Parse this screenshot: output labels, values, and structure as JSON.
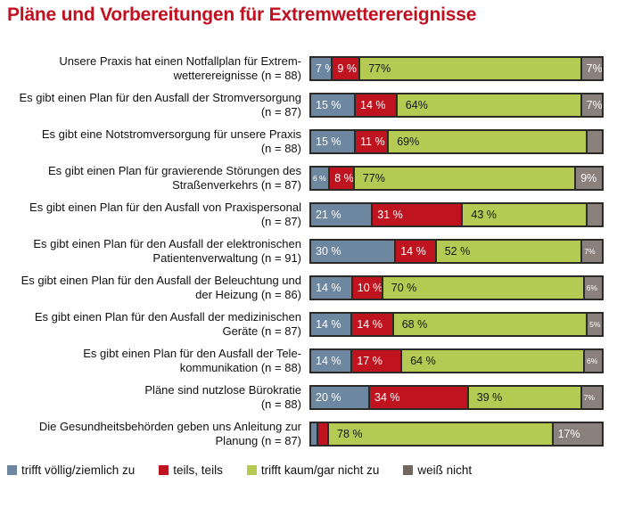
{
  "title": "Pläne und Vorbereitungen für Extremwetterereignisse",
  "colors": {
    "title": "#c11020",
    "border": "#2b2a27",
    "agree": "#6d87a0",
    "mixed": "#bf141f",
    "disagree": "#b5ca52",
    "dont_know": "#8a817d",
    "dont_know_legend": "#6f6760"
  },
  "legend": [
    {
      "key": "agree",
      "label": "trifft völlig/ziemlich zu",
      "color": "#6d87a0"
    },
    {
      "key": "mixed",
      "label": "teils, teils",
      "color": "#bf141f"
    },
    {
      "key": "disagree",
      "label": "trifft kaum/gar nicht zu",
      "color": "#b5ca52"
    },
    {
      "key": "dontknow",
      "label": "weiß nicht",
      "color": "#6f6760"
    }
  ],
  "chart_data": {
    "type": "bar",
    "orientation": "horizontal",
    "stacked": true,
    "x_range_percent": [
      0,
      100
    ],
    "grid": false,
    "legend_position": "bottom",
    "series_names": [
      "trifft völlig/ziemlich zu",
      "teils, teils",
      "trifft kaum/gar nicht zu",
      "weiß nicht"
    ],
    "rows": [
      {
        "label_lines": [
          "Unsere Praxis hat einen Notfallplan für Extrem-",
          "wetterereignisse (n = 88)"
        ],
        "segments": [
          {
            "key": "agree",
            "value": 7,
            "label": "7 %",
            "small": false
          },
          {
            "key": "mixed",
            "value": 9,
            "label": "9 %",
            "small": false
          },
          {
            "key": "disagree",
            "value": 77,
            "label": "77%",
            "small": false
          },
          {
            "key": "dontknow",
            "value": 7,
            "label": "7%",
            "small": false
          }
        ]
      },
      {
        "label_lines": [
          "Es gibt einen Plan für den Ausfall der Stromversorgung",
          "(n = 87)"
        ],
        "segments": [
          {
            "key": "agree",
            "value": 15,
            "label": "15 %",
            "small": false
          },
          {
            "key": "mixed",
            "value": 14,
            "label": "14 %",
            "small": false
          },
          {
            "key": "disagree",
            "value": 64,
            "label": "64%",
            "small": false
          },
          {
            "key": "dontknow",
            "value": 7,
            "label": "7%",
            "small": false
          }
        ]
      },
      {
        "label_lines": [
          "Es gibt eine Notstromversorgung für unsere Praxis",
          "(n = 88)"
        ],
        "segments": [
          {
            "key": "agree",
            "value": 15,
            "label": "15 %",
            "small": false
          },
          {
            "key": "mixed",
            "value": 11,
            "label": "11 %",
            "small": false
          },
          {
            "key": "disagree",
            "value": 69,
            "label": "69%",
            "small": false
          },
          {
            "key": "dontknow",
            "value": 5,
            "label": "",
            "small": false
          }
        ]
      },
      {
        "label_lines": [
          "Es gibt einen Plan für gravierende Störungen des",
          "Straßenverkehrs (n = 87)"
        ],
        "segments": [
          {
            "key": "agree",
            "value": 6,
            "label": "6 %",
            "small": true
          },
          {
            "key": "mixed",
            "value": 8,
            "label": "8 %",
            "small": false
          },
          {
            "key": "disagree",
            "value": 77,
            "label": "77%",
            "small": false
          },
          {
            "key": "dontknow",
            "value": 9,
            "label": "9%",
            "small": false
          }
        ]
      },
      {
        "label_lines": [
          "Es gibt einen Plan für den Ausfall von Praxispersonal",
          "(n = 87)"
        ],
        "segments": [
          {
            "key": "agree",
            "value": 21,
            "label": "21 %",
            "small": false
          },
          {
            "key": "mixed",
            "value": 31,
            "label": "31 %",
            "small": false
          },
          {
            "key": "disagree",
            "value": 43,
            "label": "43 %",
            "small": false
          },
          {
            "key": "dontknow",
            "value": 5,
            "label": "",
            "small": false
          }
        ]
      },
      {
        "label_lines": [
          "Es gibt einen Plan für den Ausfall der elektronischen",
          "Patientenverwaltung (n = 91)"
        ],
        "segments": [
          {
            "key": "agree",
            "value": 30,
            "label": "30 %",
            "small": false
          },
          {
            "key": "mixed",
            "value": 14,
            "label": "14 %",
            "small": false
          },
          {
            "key": "disagree",
            "value": 52,
            "label": "52 %",
            "small": false
          },
          {
            "key": "dontknow",
            "value": 7,
            "label": "7%",
            "small": true
          }
        ]
      },
      {
        "label_lines": [
          "Es gibt einen Plan für den Ausfall der Beleuchtung und",
          "der Heizung (n = 86)"
        ],
        "segments": [
          {
            "key": "agree",
            "value": 14,
            "label": "14 %",
            "small": false
          },
          {
            "key": "mixed",
            "value": 10,
            "label": "10 %",
            "small": false
          },
          {
            "key": "disagree",
            "value": 70,
            "label": "70 %",
            "small": false
          },
          {
            "key": "dontknow",
            "value": 6,
            "label": "6%",
            "small": true
          }
        ]
      },
      {
        "label_lines": [
          "Es gibt einen Plan für den Ausfall der medizinischen",
          "Geräte (n = 87)"
        ],
        "segments": [
          {
            "key": "agree",
            "value": 14,
            "label": "14 %",
            "small": false
          },
          {
            "key": "mixed",
            "value": 14,
            "label": "14 %",
            "small": false
          },
          {
            "key": "disagree",
            "value": 68,
            "label": "68 %",
            "small": false
          },
          {
            "key": "dontknow",
            "value": 5,
            "label": "5%",
            "small": true
          }
        ]
      },
      {
        "label_lines": [
          "Es gibt einen Plan für den Ausfall der Tele-",
          "kommunikation (n = 88)"
        ],
        "segments": [
          {
            "key": "agree",
            "value": 14,
            "label": "14 %",
            "small": false
          },
          {
            "key": "mixed",
            "value": 17,
            "label": "17 %",
            "small": false
          },
          {
            "key": "disagree",
            "value": 64,
            "label": "64 %",
            "small": false
          },
          {
            "key": "dontknow",
            "value": 6,
            "label": "6%",
            "small": true
          }
        ]
      },
      {
        "label_lines": [
          "Pläne sind nutzlose Bürokratie",
          "(n = 88)"
        ],
        "segments": [
          {
            "key": "agree",
            "value": 20,
            "label": "20 %",
            "small": false
          },
          {
            "key": "mixed",
            "value": 34,
            "label": "34 %",
            "small": false
          },
          {
            "key": "disagree",
            "value": 39,
            "label": "39 %",
            "small": false
          },
          {
            "key": "dontknow",
            "value": 7,
            "label": "7%",
            "small": true
          }
        ]
      },
      {
        "label_lines": [
          "Die Gesundheitsbehörden geben uns Anleitung zur",
          "Planung (n = 87)"
        ],
        "segments": [
          {
            "key": "agree",
            "value": 2,
            "label": "",
            "small": false
          },
          {
            "key": "mixed",
            "value": 3,
            "label": "",
            "small": false
          },
          {
            "key": "disagree",
            "value": 78,
            "label": "78 %",
            "small": false
          },
          {
            "key": "dontknow",
            "value": 17,
            "label": "17%",
            "small": false
          }
        ]
      }
    ]
  }
}
